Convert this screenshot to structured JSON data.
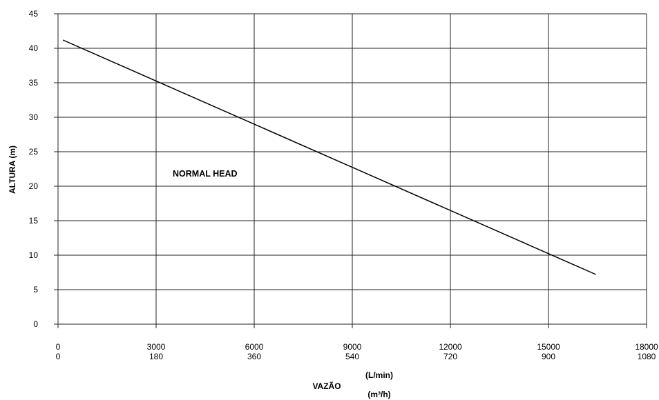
{
  "chart_data": {
    "type": "line",
    "ylabel": "ALTURA (m)",
    "xlabel": "VAZÃO",
    "x_unit_primary": "(L/min)",
    "x_unit_secondary": "(m³/h)",
    "annotation": "NORMAL HEAD",
    "xlim": [
      0,
      18000
    ],
    "ylim": [
      0,
      45
    ],
    "grid": true,
    "x_ticks_primary": [
      "0",
      "3000",
      "6000",
      "9000",
      "12000",
      "15000",
      "18000"
    ],
    "x_ticks_secondary": [
      "0",
      "180",
      "360",
      "540",
      "720",
      "900",
      "1080"
    ],
    "y_ticks": [
      "0",
      "5",
      "10",
      "15",
      "20",
      "25",
      "30",
      "35",
      "40",
      "45"
    ],
    "series": [
      {
        "x": [
          150,
          16450
        ],
        "y": [
          41.2,
          7.2
        ]
      }
    ]
  }
}
